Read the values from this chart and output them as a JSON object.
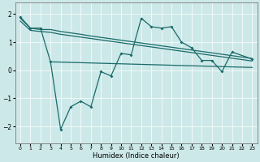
{
  "xlabel": "Humidex (Indice chaleur)",
  "background_color": "#cde8e8",
  "grid_color": "#ffffff",
  "line_color": "#1a6b6b",
  "xlim": [
    -0.5,
    23.5
  ],
  "ylim": [
    -2.6,
    2.4
  ],
  "yticks": [
    -2,
    -1,
    0,
    1,
    2
  ],
  "xticks": [
    0,
    1,
    2,
    3,
    4,
    5,
    6,
    7,
    8,
    9,
    10,
    11,
    12,
    13,
    14,
    15,
    16,
    17,
    18,
    19,
    20,
    21,
    22,
    23
  ],
  "line_main_x": [
    0,
    1,
    2,
    3,
    4,
    5,
    6,
    7,
    8,
    9,
    10,
    11,
    12,
    13,
    14,
    15,
    16,
    17,
    18,
    19,
    20,
    21,
    23
  ],
  "line_main_y": [
    1.9,
    1.5,
    1.5,
    0.3,
    -2.1,
    -1.3,
    -1.1,
    -1.3,
    -0.05,
    -0.2,
    0.6,
    0.55,
    1.85,
    1.55,
    1.5,
    1.55,
    1.0,
    0.8,
    0.35,
    0.35,
    -0.05,
    0.65,
    0.4
  ],
  "line_upper_x": [
    0,
    1,
    2,
    3,
    4,
    5,
    6,
    7,
    8,
    9,
    10,
    11,
    12,
    13,
    14,
    15,
    16,
    17,
    18,
    19,
    20,
    21,
    22,
    23
  ],
  "line_upper_y": [
    1.85,
    1.5,
    1.45,
    1.45,
    1.38,
    1.33,
    1.28,
    1.22,
    1.17,
    1.12,
    1.07,
    1.02,
    0.97,
    0.92,
    0.87,
    0.82,
    0.77,
    0.72,
    0.67,
    0.62,
    0.57,
    0.52,
    0.47,
    0.42
  ],
  "line_mid_x": [
    0,
    1,
    2,
    3,
    4,
    5,
    6,
    7,
    8,
    9,
    10,
    11,
    12,
    13,
    14,
    15,
    16,
    17,
    18,
    19,
    20,
    21,
    22,
    23
  ],
  "line_mid_y": [
    1.75,
    1.42,
    1.38,
    1.35,
    1.28,
    1.23,
    1.18,
    1.13,
    1.08,
    1.03,
    0.98,
    0.93,
    0.88,
    0.83,
    0.78,
    0.73,
    0.68,
    0.63,
    0.58,
    0.53,
    0.48,
    0.43,
    0.38,
    0.33
  ],
  "line_lower_x": [
    3,
    4,
    5,
    6,
    7,
    8,
    9,
    10,
    11,
    12,
    13,
    14,
    15,
    16,
    17,
    18,
    19,
    20,
    21,
    22,
    23
  ],
  "line_lower_y": [
    0.3,
    0.29,
    0.28,
    0.27,
    0.26,
    0.25,
    0.24,
    0.23,
    0.22,
    0.21,
    0.2,
    0.19,
    0.18,
    0.17,
    0.16,
    0.15,
    0.14,
    0.13,
    0.12,
    0.11,
    0.1
  ]
}
